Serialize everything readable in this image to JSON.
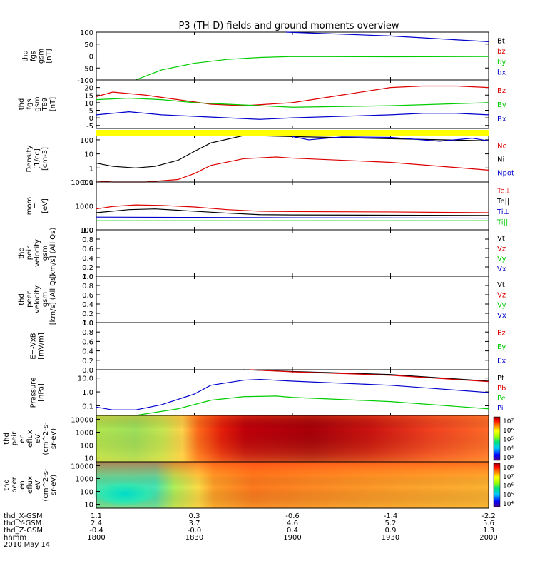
{
  "title": "P3 (TH-D) fields and ground moments overview",
  "chart_data": {
    "type": "line",
    "x_range": [
      "18:00",
      "20:00"
    ],
    "panels": [
      {
        "ylabel": [
          "thd",
          "fgs",
          "gsm",
          "[nT]"
        ],
        "ylim": [
          -100,
          100
        ],
        "yticks": [
          "100",
          "50",
          "0",
          "-50",
          "-100"
        ],
        "legend": [
          {
            "label": "Bt",
            "color": "#000000"
          },
          {
            "label": "bz",
            "color": "#dd0000"
          },
          {
            "label": "by",
            "color": "#00cc00"
          },
          {
            "label": "bx",
            "color": "#0000cc"
          }
        ],
        "series": [
          {
            "color": "#0000cc",
            "x": [
              1858,
              1930,
              2000
            ],
            "y": [
              100,
              84,
              60
            ]
          },
          {
            "color": "#00cc00",
            "x": [
              1812,
              1820,
              1830,
              1840,
              1850,
              1900,
              1930,
              2000
            ],
            "y": [
              -100,
              -58,
              -30,
              -14,
              -6,
              -2,
              -3,
              -2
            ]
          }
        ]
      },
      {
        "ylabel": [
          "thd",
          "fgs",
          "gsm",
          "T89",
          "[nT]"
        ],
        "ylim": [
          -7,
          25
        ],
        "yticks": [
          "20",
          "15",
          "10",
          "5",
          "0",
          "-5"
        ],
        "legend": [
          {
            "label": "Bz",
            "color": "#dd0000"
          },
          {
            "label": "By",
            "color": "#00cc00"
          },
          {
            "label": "Bx",
            "color": "#0000cc"
          }
        ],
        "series": [
          {
            "color": "#dd0000",
            "x": [
              1800,
              1805,
              1815,
              1825,
              1835,
              1845,
              1900,
              1915,
              1930,
              1940,
              1950,
              2000
            ],
            "y": [
              14,
              17,
              15,
              12,
              9,
              8,
              10,
              15,
              20,
              21,
              21,
              20
            ]
          },
          {
            "color": "#00cc00",
            "x": [
              1800,
              1810,
              1820,
              1830,
              1840,
              1850,
              1900,
              1930,
              2000
            ],
            "y": [
              12,
              13,
              12,
              10,
              9,
              8,
              7,
              8,
              10
            ]
          },
          {
            "color": "#0000cc",
            "x": [
              1800,
              1810,
              1820,
              1830,
              1840,
              1850,
              1900,
              1930,
              1940,
              1950,
              2000
            ],
            "y": [
              2,
              4,
              2,
              1,
              0,
              -1,
              0,
              2,
              3,
              3,
              2
            ]
          }
        ]
      },
      {
        "ylabel": [
          "Density",
          "[1/cc]",
          "[cm-3]"
        ],
        "scale": "log",
        "ylim": [
          0.1,
          200
        ],
        "yticks": [
          "100",
          "10",
          "1",
          "0.1"
        ],
        "legend": [
          {
            "label": "Ne",
            "color": "#dd0000"
          },
          {
            "label": "Ni",
            "color": "#000000"
          },
          {
            "label": "Npot",
            "color": "#0000cc"
          }
        ],
        "series": [
          {
            "color": "#000000",
            "x": [
              1800,
              1805,
              1812,
              1818,
              1825,
              1830,
              1835,
              1845,
              1848,
              1900,
              1930,
              2000
            ],
            "y": [
              2.2,
              1.3,
              1,
              1.3,
              3.5,
              15,
              60,
              200,
              200,
              170,
              120,
              85
            ]
          },
          {
            "color": "#dd0000",
            "x": [
              1800,
              1805,
              1815,
              1825,
              1830,
              1835,
              1845,
              1855,
              1900,
              1930,
              2000
            ],
            "y": [
              0.12,
              0.1,
              0.1,
              0.15,
              0.4,
              1.5,
              4.5,
              6,
              5,
              2.5,
              0.7
            ]
          },
          {
            "color": "#0000cc",
            "x": [
              1900,
              1905,
              1915,
              1930,
              1945,
              1955,
              2000
            ],
            "y": [
              170,
              100,
              160,
              150,
              80,
              130,
              85
            ]
          }
        ]
      },
      {
        "ylabel": [
          "mom",
          "T",
          "[eV]"
        ],
        "scale": "log",
        "ylim": [
          100,
          10000
        ],
        "yticks": [
          "10000",
          "1000",
          "100"
        ],
        "legend": [
          {
            "label": "Te⊥",
            "color": "#dd0000"
          },
          {
            "label": "Te||",
            "color": "#000000"
          },
          {
            "label": "Ti⊥",
            "color": "#0000cc"
          },
          {
            "label": "Ti||",
            "color": "#00cc00"
          }
        ],
        "series": [
          {
            "color": "#dd0000",
            "x": [
              1800,
              1805,
              1812,
              1820,
              1830,
              1840,
              1850,
              1900,
              1930,
              2000
            ],
            "y": [
              750,
              950,
              1100,
              1050,
              900,
              700,
              600,
              580,
              560,
              520
            ]
          },
          {
            "color": "#000000",
            "x": [
              1800,
              1810,
              1818,
              1830,
              1840,
              1850,
              1900,
              2000
            ],
            "y": [
              520,
              700,
              750,
              600,
              500,
              430,
              420,
              400
            ]
          },
          {
            "color": "#0000cc",
            "x": [
              1800,
              1830,
              1900,
              2000
            ],
            "y": [
              340,
              330,
              320,
              310
            ]
          },
          {
            "color": "#00cc00",
            "x": [
              1800,
              1900,
              2000
            ],
            "y": [
              240,
              240,
              240
            ]
          }
        ]
      },
      {
        "ylabel": [
          "thd",
          "peir",
          "velocity",
          "gsm",
          "[km/s] (All Qs)"
        ],
        "ylim": [
          0,
          1
        ],
        "yticks": [
          "1.0",
          "0.8",
          "0.6",
          "0.4",
          "0.2",
          "0.0"
        ],
        "legend": [
          {
            "label": "Vt",
            "color": "#000000"
          },
          {
            "label": "Vz",
            "color": "#dd0000"
          },
          {
            "label": "Vy",
            "color": "#00cc00"
          },
          {
            "label": "Vx",
            "color": "#0000cc"
          }
        ],
        "series": []
      },
      {
        "ylabel": [
          "thd",
          "peer",
          "velocity",
          "gsm",
          "[km/s] (All Qs)"
        ],
        "ylim": [
          0,
          1
        ],
        "yticks": [
          "1.0",
          "0.8",
          "0.6",
          "0.4",
          "0.2",
          "0.0"
        ],
        "legend": [
          {
            "label": "Vt",
            "color": "#000000"
          },
          {
            "label": "Vz",
            "color": "#dd0000"
          },
          {
            "label": "Vy",
            "color": "#00cc00"
          },
          {
            "label": "Vx",
            "color": "#0000cc"
          }
        ],
        "series": []
      },
      {
        "ylabel": [
          "E=-VxB",
          "[mV/m]"
        ],
        "ylim": [
          0,
          1
        ],
        "yticks": [
          "1.0",
          "0.8",
          "0.6",
          "0.4",
          "0.2",
          "0.0"
        ],
        "legend": [
          {
            "label": "Ez",
            "color": "#dd0000"
          },
          {
            "label": "Ey",
            "color": "#00cc00"
          },
          {
            "label": "Ex",
            "color": "#0000cc"
          }
        ],
        "series": []
      },
      {
        "ylabel": [
          "Pressure",
          "[nPa]"
        ],
        "scale": "log",
        "ylim": [
          0.02,
          40
        ],
        "yticks": [
          "10.0",
          "1.0",
          "0.1"
        ],
        "legend": [
          {
            "label": "Pt",
            "color": "#000000"
          },
          {
            "label": "Pb",
            "color": "#dd0000"
          },
          {
            "label": "Pe",
            "color": "#00cc00"
          },
          {
            "label": "Pi",
            "color": "#0000cc"
          }
        ],
        "series": [
          {
            "color": "#000000",
            "x": [
              1845,
              1900,
              1930,
              2000
            ],
            "y": [
              40,
              30,
              18,
              6
            ]
          },
          {
            "color": "#dd0000",
            "x": [
              1847,
              1900,
              1930,
              2000
            ],
            "y": [
              40,
              28,
              16,
              5.5
            ]
          },
          {
            "color": "#0000cc",
            "x": [
              1800,
              1805,
              1812,
              1820,
              1830,
              1835,
              1845,
              1850,
              1900,
              1930,
              2000
            ],
            "y": [
              0.08,
              0.05,
              0.05,
              0.12,
              0.7,
              3,
              7,
              8,
              6,
              3,
              0.9
            ]
          },
          {
            "color": "#00cc00",
            "x": [
              1812,
              1825,
              1835,
              1845,
              1855,
              1900,
              1930,
              2000
            ],
            "y": [
              0.02,
              0.06,
              0.25,
              0.45,
              0.5,
              0.4,
              0.2,
              0.06
            ]
          }
        ]
      }
    ],
    "spectrograms": [
      {
        "ylabel": [
          "thd",
          "peir",
          "en",
          "eflux",
          "eV",
          "(cm^2-s-",
          "sr-eV)"
        ],
        "yticks": [
          "10000",
          "1000",
          "100",
          "10"
        ],
        "colorbar_ticks": [
          "10⁷",
          "10⁶",
          "10⁵",
          "10⁴",
          "10³"
        ]
      },
      {
        "ylabel": [
          "thd",
          "peer",
          "en",
          "eflux",
          "eV",
          "(cm^2-s-",
          "sr-eV)"
        ],
        "yticks": [
          "10000",
          "1000",
          "100",
          "10"
        ],
        "colorbar_ticks": [
          "10⁸",
          "10⁷",
          "10⁶",
          "10⁵",
          "10⁴"
        ]
      }
    ],
    "x_axis": {
      "row_labels": [
        "thd_X-GSM",
        "thd_Y-GSM",
        "thd_Z-GSM",
        "hhmm",
        "2010 May 14"
      ],
      "columns": [
        {
          "time": "1800",
          "vals": [
            "1.1",
            "2.4",
            "-0.4"
          ]
        },
        {
          "time": "1830",
          "vals": [
            "0.3",
            "3.7",
            "-0.0"
          ]
        },
        {
          "time": "1900",
          "vals": [
            "-0.6",
            "4.6",
            "0.4"
          ]
        },
        {
          "time": "1930",
          "vals": [
            "-1.4",
            "5.2",
            "0.9"
          ]
        },
        {
          "time": "2000",
          "vals": [
            "-2.2",
            "5.6",
            "1.3"
          ]
        }
      ]
    }
  }
}
